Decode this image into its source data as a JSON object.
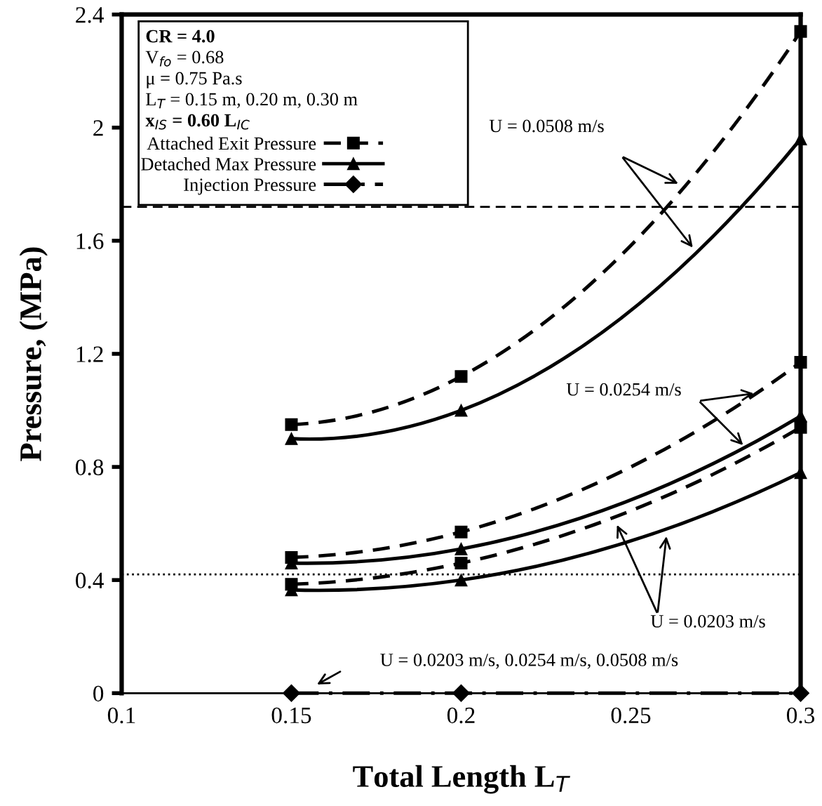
{
  "chart_data": {
    "type": "line",
    "xlabel": "Total Length L$_{T}$",
    "ylabel": "Pressure, (MPa)",
    "xlim": [
      0.1,
      0.3
    ],
    "xticks": [
      0.1,
      0.15,
      0.2,
      0.25,
      0.3
    ],
    "ylim": [
      0,
      2.4
    ],
    "yticks": [
      0,
      0.4,
      0.8,
      1.2,
      1.6,
      2,
      2.4
    ],
    "grid": false,
    "legend": "top left",
    "x": [
      0.15,
      0.2,
      0.3
    ],
    "series": [
      {
        "name": "Attached Exit Pressure",
        "color": "#000000",
        "line_style": "dashed",
        "marker": "square",
        "values": [
          0.95,
          1.12,
          2.34
        ]
      },
      {
        "name": "Detached Max Pressure",
        "color": "#000000",
        "line_style": "solid",
        "marker": "triangle",
        "values": [
          0.9,
          1.0,
          1.96
        ]
      },
      {
        "color": "#000000",
        "line_style": "dashed",
        "marker": "square",
        "values": [
          0.48,
          0.57,
          1.17
        ]
      },
      {
        "color": "#000000",
        "line_style": "solid",
        "marker": "triangle",
        "values": [
          0.46,
          0.51,
          0.98
        ]
      },
      {
        "color": "#000000",
        "line_style": "dashed",
        "marker": "square",
        "values": [
          0.385,
          0.46,
          0.94
        ]
      },
      {
        "color": "#000000",
        "line_style": "solid",
        "marker": "triangle",
        "values": [
          0.365,
          0.4,
          0.78
        ]
      },
      {
        "name": "Injection Pressure",
        "color": "#000000",
        "line_style": "dashdot",
        "marker": "diamond",
        "values": [
          0,
          0,
          0
        ]
      }
    ],
    "ref_lines": [
      {
        "axis": "y",
        "value": 1.72,
        "color": "#000000",
        "line_style": "dashed"
      },
      {
        "axis": "y",
        "value": 0.42,
        "color": "#000000",
        "line_style": "dotted"
      }
    ],
    "annotations": [
      "CR = 4.0",
      "V$_{fo}$ = 0.68",
      "μ = 0.75 Pa.s",
      "L$_{T}$ = 0.15 m, 0.20 m, 0.30 m",
      "x$_{IS}$ = 0.60 L$_{IC}$",
      "U = 0.0508 m/s",
      "U = 0.0254 m/s",
      "U = 0.0203 m/s",
      "U = 0.0203 m/s, 0.0254 m/s, 0.0508 m/s"
    ]
  }
}
